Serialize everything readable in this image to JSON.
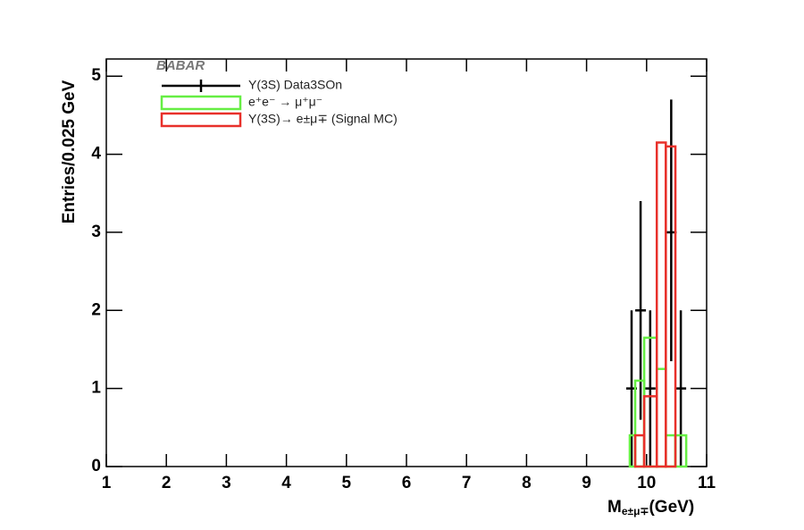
{
  "chart_data": {
    "type": "histogram",
    "ylabel": "Entries/0.025 GeV",
    "xlabel": {
      "main": "M",
      "sub": "e±μ∓",
      "unit": "(GeV)"
    },
    "experiment_label": "BABAR",
    "xlim": [
      1,
      11
    ],
    "xticks": [
      1,
      2,
      3,
      4,
      5,
      6,
      7,
      8,
      9,
      10,
      11
    ],
    "ylim": [
      0,
      5.22
    ],
    "yticks": [
      0,
      1,
      2,
      3,
      4,
      5
    ],
    "series": [
      {
        "name": "Υ(3S) Data3SOn",
        "color": "#000000",
        "style": "markers",
        "x": [
          9.75,
          9.9,
          10.06,
          10.41,
          10.57
        ],
        "values": [
          1,
          2,
          1,
          3,
          1
        ],
        "err_low": [
          1,
          1.4,
          1,
          1.65,
          1
        ],
        "err_high": [
          1,
          1.4,
          1,
          1.7,
          1
        ]
      },
      {
        "name": "e⁺e⁻ → μ⁺μ⁻",
        "color": "#66ee44",
        "bins": [
          9.72,
          9.81,
          9.96,
          10.17,
          10.32,
          10.48,
          10.66
        ],
        "values": [
          0.4,
          1.1,
          1.65,
          1.25,
          0.4,
          0.4
        ]
      },
      {
        "name": "Υ(3S)→ e±μ∓ (Signal MC)",
        "color": "#e8302a",
        "bins": [
          9.81,
          9.96,
          10.17,
          10.32,
          10.48
        ],
        "values": [
          0.4,
          0.9,
          4.15,
          4.1
        ]
      }
    ]
  }
}
